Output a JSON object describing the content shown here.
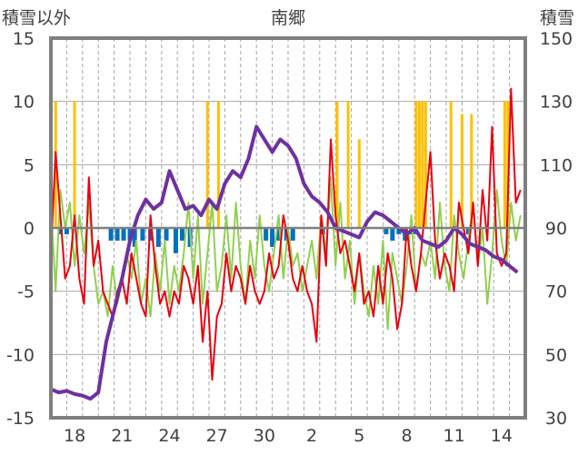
{
  "chart_data": {
    "type": "line",
    "title": "南郷",
    "ylabel": "積雪以外",
    "y2label": "積雪",
    "ylim": [
      -15,
      15
    ],
    "y2lim": [
      30,
      150
    ],
    "yticks": [
      15,
      10,
      5,
      0,
      -5,
      -10,
      -15
    ],
    "y2ticks": [
      150,
      130,
      110,
      90,
      70,
      50,
      30
    ],
    "x_tick_labels": [
      "18",
      "21",
      "24",
      "27",
      "30",
      "2",
      "5",
      "8",
      "11",
      "14"
    ],
    "days": 30,
    "grid": true,
    "legend": "none",
    "colors": {
      "red_line": "#e8000f",
      "green_line": "#92d050",
      "purple_line": "#7030a0",
      "yellow_bars": "#ffc000",
      "blue_bars": "#0070c0",
      "frame": "#7f7f7f",
      "grid": "#a6a6a6"
    },
    "series": [
      {
        "color_key": "purple_line",
        "axis": "right",
        "x": [
          0,
          0.5,
          1,
          1.5,
          2,
          2.5,
          3,
          3.5,
          4,
          4.5,
          5,
          5.5,
          6,
          6.5,
          7,
          7.5,
          8,
          8.5,
          9,
          9.5,
          10,
          10.5,
          11,
          11.5,
          12,
          12.5,
          13,
          13.5,
          14,
          14.5,
          15,
          15.5,
          16,
          16.5,
          17,
          17.5,
          18,
          18.5,
          19,
          19.5,
          20,
          20.5,
          21,
          21.5,
          22,
          22.5,
          23,
          23.5,
          24,
          24.5,
          25,
          25.5,
          26,
          26.5,
          27,
          27.5,
          28,
          28.5,
          29,
          29.5
        ],
        "values": [
          39,
          38,
          38.5,
          37.5,
          37,
          36,
          38,
          54,
          64,
          74,
          86,
          94,
          99,
          96,
          98,
          108,
          102,
          96,
          97,
          94,
          99,
          96,
          104,
          108,
          106,
          112,
          122,
          118,
          114,
          118,
          116,
          112,
          104,
          100,
          98,
          95,
          90,
          89,
          88,
          87,
          92,
          95,
          94,
          92,
          90,
          88,
          90,
          86,
          85,
          84,
          86,
          90,
          88,
          85,
          84,
          83,
          81,
          80,
          78,
          76
        ]
      },
      {
        "color_key": "red_line",
        "axis": "left",
        "x": [
          0,
          0.3,
          0.6,
          0.9,
          1.2,
          1.5,
          1.8,
          2.1,
          2.4,
          2.7,
          3.0,
          3.3,
          3.6,
          3.9,
          4.2,
          4.5,
          4.8,
          5.1,
          5.4,
          5.7,
          6.0,
          6.3,
          6.6,
          6.9,
          7.2,
          7.5,
          7.8,
          8.1,
          8.4,
          8.7,
          9.0,
          9.3,
          9.6,
          9.9,
          10.2,
          10.5,
          10.8,
          11.1,
          11.4,
          11.7,
          12.0,
          12.3,
          12.6,
          12.9,
          13.2,
          13.5,
          13.8,
          14.1,
          14.4,
          14.7,
          15.0,
          15.3,
          15.6,
          15.9,
          16.2,
          16.5,
          16.8,
          17.1,
          17.4,
          17.7,
          18.0,
          18.3,
          18.6,
          18.9,
          19.2,
          19.5,
          19.8,
          20.1,
          20.4,
          20.7,
          21.0,
          21.3,
          21.6,
          21.9,
          22.2,
          22.5,
          22.8,
          23.1,
          23.4,
          23.7,
          24.0,
          24.3,
          24.6,
          24.9,
          25.2,
          25.5,
          25.8,
          26.1,
          26.4,
          26.7,
          27.0,
          27.3,
          27.6,
          27.9,
          28.2,
          28.5,
          28.8,
          29.1,
          29.4,
          29.7
        ],
        "values": [
          -2,
          6,
          1,
          -4,
          -3,
          1,
          -4,
          -6,
          4,
          -3,
          -1,
          -5,
          -6,
          -7,
          -5,
          -4,
          -6,
          -2,
          -4,
          -6,
          -7,
          1,
          -3,
          -6,
          -5,
          -7,
          -5,
          -6,
          -3,
          -4,
          -6,
          -3,
          -9,
          -5,
          -12,
          -7,
          -6,
          -2,
          -5,
          -3,
          -4,
          -6,
          -3,
          -5,
          -6,
          -5,
          -2,
          -4,
          -3,
          1,
          -1,
          -4,
          -5,
          -3,
          -5,
          -6,
          -9,
          1,
          -3,
          7,
          1,
          -2,
          -1,
          -3,
          -5,
          -2,
          -6,
          -5,
          -7,
          -3,
          -6,
          -2,
          -4,
          -8,
          -6,
          0,
          -3,
          -5,
          -2,
          2,
          6,
          -1,
          -4,
          -2,
          -3,
          -5,
          2,
          0,
          -2,
          2,
          -3,
          3,
          -1,
          8,
          -2,
          -3,
          -2,
          11,
          2,
          3
        ]
      },
      {
        "color_key": "green_line",
        "axis": "left",
        "x": [
          0,
          0.3,
          0.6,
          0.9,
          1.2,
          1.5,
          1.8,
          2.1,
          2.4,
          2.7,
          3.0,
          3.3,
          3.6,
          3.9,
          4.2,
          4.5,
          4.8,
          5.1,
          5.4,
          5.7,
          6.0,
          6.3,
          6.6,
          6.9,
          7.2,
          7.5,
          7.8,
          8.1,
          8.4,
          8.7,
          9.0,
          9.3,
          9.6,
          9.9,
          10.2,
          10.5,
          10.8,
          11.1,
          11.4,
          11.7,
          12.0,
          12.3,
          12.6,
          12.9,
          13.2,
          13.5,
          13.8,
          14.1,
          14.4,
          14.7,
          15.0,
          15.3,
          15.6,
          15.9,
          16.2,
          16.5,
          16.8,
          17.1,
          17.4,
          17.7,
          18.0,
          18.3,
          18.6,
          18.9,
          19.2,
          19.5,
          19.8,
          20.1,
          20.4,
          20.7,
          21.0,
          21.3,
          21.6,
          21.9,
          22.2,
          22.5,
          22.8,
          23.1,
          23.4,
          23.7,
          24.0,
          24.3,
          24.6,
          24.9,
          25.2,
          25.5,
          25.8,
          26.1,
          26.4,
          26.7,
          27.0,
          27.3,
          27.6,
          27.9,
          28.2,
          28.5,
          28.8,
          29.1,
          29.4,
          29.7
        ],
        "values": [
          2,
          -5,
          3,
          0,
          2,
          -3,
          1,
          -2,
          2,
          -3,
          -6,
          -5,
          -7,
          -3,
          -6,
          -4,
          -2,
          -4,
          -1,
          -6,
          -4,
          -7,
          -2,
          -5,
          -1,
          -6,
          -3,
          -5,
          -2,
          2,
          -4,
          1,
          -6,
          -2,
          2,
          -5,
          -3,
          1,
          -4,
          2,
          -3,
          -6,
          -1,
          -4,
          1,
          -3,
          -5,
          -2,
          1,
          -4,
          0,
          -3,
          -2,
          -5,
          -3,
          -1,
          -4,
          1,
          -2,
          4,
          -3,
          2,
          -4,
          -1,
          -6,
          -2,
          -5,
          -7,
          -3,
          -6,
          -1,
          -8,
          -2,
          -4,
          -6,
          -3,
          1,
          -5,
          -2,
          -3,
          -1,
          -4,
          2,
          -3,
          -5,
          1,
          -2,
          -4,
          -1,
          2,
          -3,
          0,
          -6,
          -2,
          3,
          -1,
          -3,
          2,
          -1,
          1
        ]
      },
      {
        "color_key": "yellow_bars",
        "axis": "left",
        "bars": [
          [
            0.3,
            10
          ],
          [
            1.5,
            10
          ],
          [
            9.9,
            10
          ],
          [
            10.6,
            10
          ],
          [
            18.1,
            10
          ],
          [
            18.8,
            10
          ],
          [
            19.5,
            7
          ],
          [
            23.1,
            10
          ],
          [
            23.3,
            10
          ],
          [
            23.5,
            10
          ],
          [
            23.7,
            10
          ],
          [
            25.3,
            10
          ],
          [
            26.0,
            9
          ],
          [
            26.6,
            9
          ],
          [
            28.7,
            10
          ],
          [
            28.9,
            10
          ]
        ]
      },
      {
        "color_key": "blue_bars",
        "axis": "left",
        "bars": [
          [
            0.6,
            -0.5
          ],
          [
            1.0,
            -0.5
          ],
          [
            3.8,
            -1
          ],
          [
            4.2,
            -1
          ],
          [
            4.6,
            -1
          ],
          [
            5.0,
            -1
          ],
          [
            5.3,
            -1.5
          ],
          [
            5.8,
            -1
          ],
          [
            6.3,
            -1
          ],
          [
            6.8,
            -1.5
          ],
          [
            7.3,
            -1
          ],
          [
            7.9,
            -2
          ],
          [
            8.3,
            -1
          ],
          [
            8.8,
            -1.5
          ],
          [
            13.6,
            -1
          ],
          [
            14.0,
            -1.5
          ],
          [
            14.4,
            -1
          ],
          [
            14.9,
            -1
          ],
          [
            15.3,
            -1
          ],
          [
            17.2,
            -0.5
          ],
          [
            21.2,
            -0.5
          ],
          [
            21.6,
            -1
          ],
          [
            22.0,
            -0.5
          ],
          [
            22.4,
            -1
          ],
          [
            22.8,
            -0.5
          ],
          [
            23.0,
            -0.5
          ],
          [
            26.4,
            -0.5
          ]
        ]
      }
    ]
  }
}
